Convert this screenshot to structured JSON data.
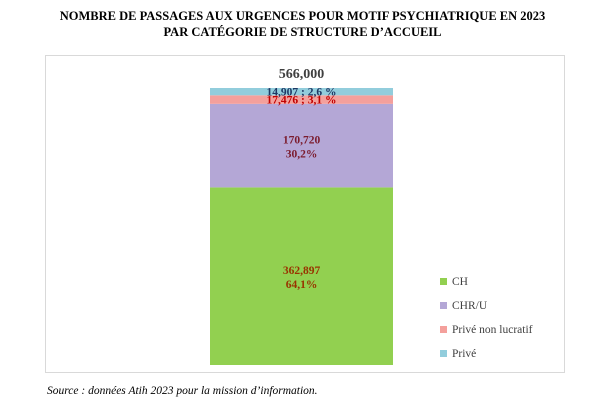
{
  "title_line1": "NOMBRE DE PASSAGES AUX URGENCES POUR MOTIF PSYCHIATRIQUE EN 2023",
  "title_line2": "PAR CATÉGORIE DE STRUCTURE D’ACCUEIL",
  "source": "Source : données Atih 2023 pour la mission d’information.",
  "chart_data": {
    "type": "bar",
    "stacked": true,
    "total_label": "566,000",
    "series": [
      {
        "name": "CH",
        "value": 362897,
        "label_line1": "362,897",
        "label_line2": "64,1%",
        "color": "#92d050",
        "label_color": "#993300"
      },
      {
        "name": "CHR/U",
        "value": 170720,
        "label_line1": "170,720",
        "label_line2": "30,2%",
        "color": "#b4a7d6",
        "label_color": "#7b1c2e"
      },
      {
        "name": "Privé non lucratif",
        "value": 17476,
        "label_line1": "17,476 ; 3,1 %",
        "label_line2": "",
        "color": "#f4a09c",
        "label_color": "#c00000"
      },
      {
        "name": "Privé",
        "value": 14907,
        "label_line1": "14,907 ; 2,6 %",
        "label_line2": "",
        "color": "#92cddc",
        "label_color": "#1f3864"
      }
    ],
    "legend_position": "right",
    "grid": false
  }
}
